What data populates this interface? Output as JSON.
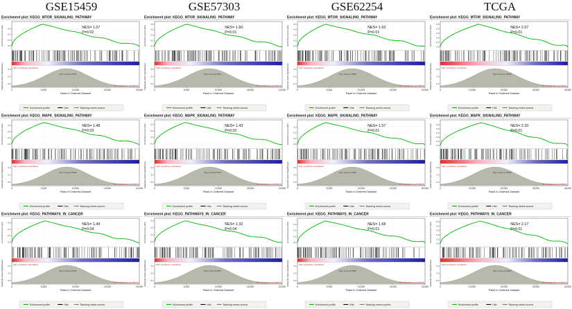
{
  "figure": {
    "datasets": [
      "GSE15459",
      "GSE57303",
      "GSE62254",
      "TCGA"
    ]
  },
  "labels": {
    "title_prefix": "Enrichment plot:",
    "ylabel_es": "Enrichment score (ES)",
    "ylabel_rank": "Ranked list metric (Signal2Noise)",
    "xlabel": "Rank in Ordered Dataset",
    "annotation_high": "'high' (positively correlated)",
    "annotation_low": "'low' (negatively correlated)",
    "zero_cross_prefix": "Zero cross at",
    "legend": [
      "Enrichment profile",
      "Hits",
      "Ranking metric scores"
    ]
  },
  "colors": {
    "es_curve": "#00b400",
    "hits": "#000000",
    "rank_fill": "#b9b9ab",
    "annotation_red": "#cc2222",
    "band": [
      "#e03030",
      "#ffb0c0",
      "#f0f0ff",
      "#7070c0",
      "#2020a0"
    ]
  },
  "chart_data": {
    "type": "line",
    "description": "3x4 grid of GSEA enrichment plots (ES curve + hit barcode + ranking metric)",
    "columns": [
      {
        "name": "GSE15459",
        "n_ranks": 20000,
        "zero_cross": 8781,
        "x_ticks": [
          "0",
          "5,000",
          "10,000",
          "15,000",
          "20,000"
        ]
      },
      {
        "name": "GSE57303",
        "n_ranks": 20000,
        "zero_cross": 9076,
        "x_ticks": [
          "0",
          "5,000",
          "10,000",
          "15,000",
          "20,000"
        ]
      },
      {
        "name": "GSE62254",
        "n_ranks": 20000,
        "zero_cross": 7866,
        "x_ticks": [
          "0",
          "5,000",
          "10,000",
          "15,000",
          "20,000"
        ]
      },
      {
        "name": "TCGA",
        "n_ranks": 40000,
        "zero_cross": 19406,
        "x_ticks": [
          "0",
          "10,000",
          "20,000",
          "30,000",
          "40,000"
        ]
      }
    ],
    "rows": [
      "KEGG_MTOR_SIGNALING_PATHWAY",
      "KEGG_MAPK_SIGNALING_PATHWAY",
      "KEGG_PATHWAYS_IN_CANCER"
    ],
    "rank_ticks": [
      5.0,
      0.0,
      -5.0
    ],
    "panels": [
      {
        "dataset": "GSE15459",
        "pathway": "KEGG_MTOR_SIGNALING_PATHWAY",
        "nes": 1.57,
        "p": 0.02,
        "es_peak": 0.38,
        "peak_frac": 0.24,
        "es_ticks": [
          0.3,
          0.2,
          0.1,
          0.0
        ]
      },
      {
        "dataset": "GSE57303",
        "pathway": "KEGG_MTOR_SIGNALING_PATHWAY",
        "nes": 1.6,
        "p": 0.01,
        "es_peak": 0.4,
        "peak_frac": 0.25,
        "es_ticks": [
          0.4,
          0.3,
          0.2,
          0.1,
          0.0
        ]
      },
      {
        "dataset": "GSE62254",
        "pathway": "KEGG_MTOR_SIGNALING_PATHWAY",
        "nes": 1.63,
        "p": 0.01,
        "es_peak": 0.4,
        "peak_frac": 0.22,
        "es_ticks": [
          0.4,
          0.3,
          0.2,
          0.1,
          0.0
        ]
      },
      {
        "dataset": "TCGA",
        "pathway": "KEGG_MTOR_SIGNALING_PATHWAY",
        "nes": 2.07,
        "p": 0.01,
        "es_peak": 0.5,
        "peak_frac": 0.3,
        "es_ticks": [
          0.5,
          0.4,
          0.3,
          0.2,
          0.1,
          0.0
        ]
      },
      {
        "dataset": "GSE15459",
        "pathway": "KEGG_MAPK_SIGNALING_PATHWAY",
        "nes": 1.48,
        "p": 0.03,
        "es_peak": 0.35,
        "peak_frac": 0.25,
        "es_ticks": [
          0.3,
          0.2,
          0.1,
          0.0
        ]
      },
      {
        "dataset": "GSE57303",
        "pathway": "KEGG_MAPK_SIGNALING_PATHWAY",
        "nes": 1.43,
        "p": 0.02,
        "es_peak": 0.33,
        "peak_frac": 0.24,
        "es_ticks": [
          0.3,
          0.2,
          0.1,
          0.0
        ]
      },
      {
        "dataset": "GSE62254",
        "pathway": "KEGG_MAPK_SIGNALING_PATHWAY",
        "nes": 1.57,
        "p": 0.01,
        "es_peak": 0.38,
        "peak_frac": 0.22,
        "es_ticks": [
          0.3,
          0.2,
          0.1,
          0.0
        ]
      },
      {
        "dataset": "TCGA",
        "pathway": "KEGG_MAPK_SIGNALING_PATHWAY",
        "nes": 2.2,
        "p": 0.01,
        "es_peak": 0.55,
        "peak_frac": 0.32,
        "es_ticks": [
          0.5,
          0.4,
          0.3,
          0.2,
          0.1,
          0.0
        ]
      },
      {
        "dataset": "GSE15459",
        "pathway": "KEGG_PATHWAYS_IN_CANCER",
        "nes": 1.44,
        "p": 0.04,
        "es_peak": 0.33,
        "peak_frac": 0.26,
        "es_ticks": [
          0.3,
          0.2,
          0.1,
          0.0
        ]
      },
      {
        "dataset": "GSE57303",
        "pathway": "KEGG_PATHWAYS_IN_CANCER",
        "nes": 1.32,
        "p": 0.04,
        "es_peak": 0.3,
        "peak_frac": 0.24,
        "es_ticks": [
          0.3,
          0.2,
          0.1,
          0.0
        ]
      },
      {
        "dataset": "GSE62254",
        "pathway": "KEGG_PATHWAYS_IN_CANCER",
        "nes": 1.58,
        "p": 0.01,
        "es_peak": 0.36,
        "peak_frac": 0.22,
        "es_ticks": [
          0.3,
          0.2,
          0.1,
          0.0
        ]
      },
      {
        "dataset": "TCGA",
        "pathway": "KEGG_PATHWAYS_IN_CANCER",
        "nes": 2.17,
        "p": 0.01,
        "es_peak": 0.52,
        "peak_frac": 0.31,
        "es_ticks": [
          0.5,
          0.4,
          0.3,
          0.2,
          0.1,
          0.0
        ]
      }
    ]
  }
}
